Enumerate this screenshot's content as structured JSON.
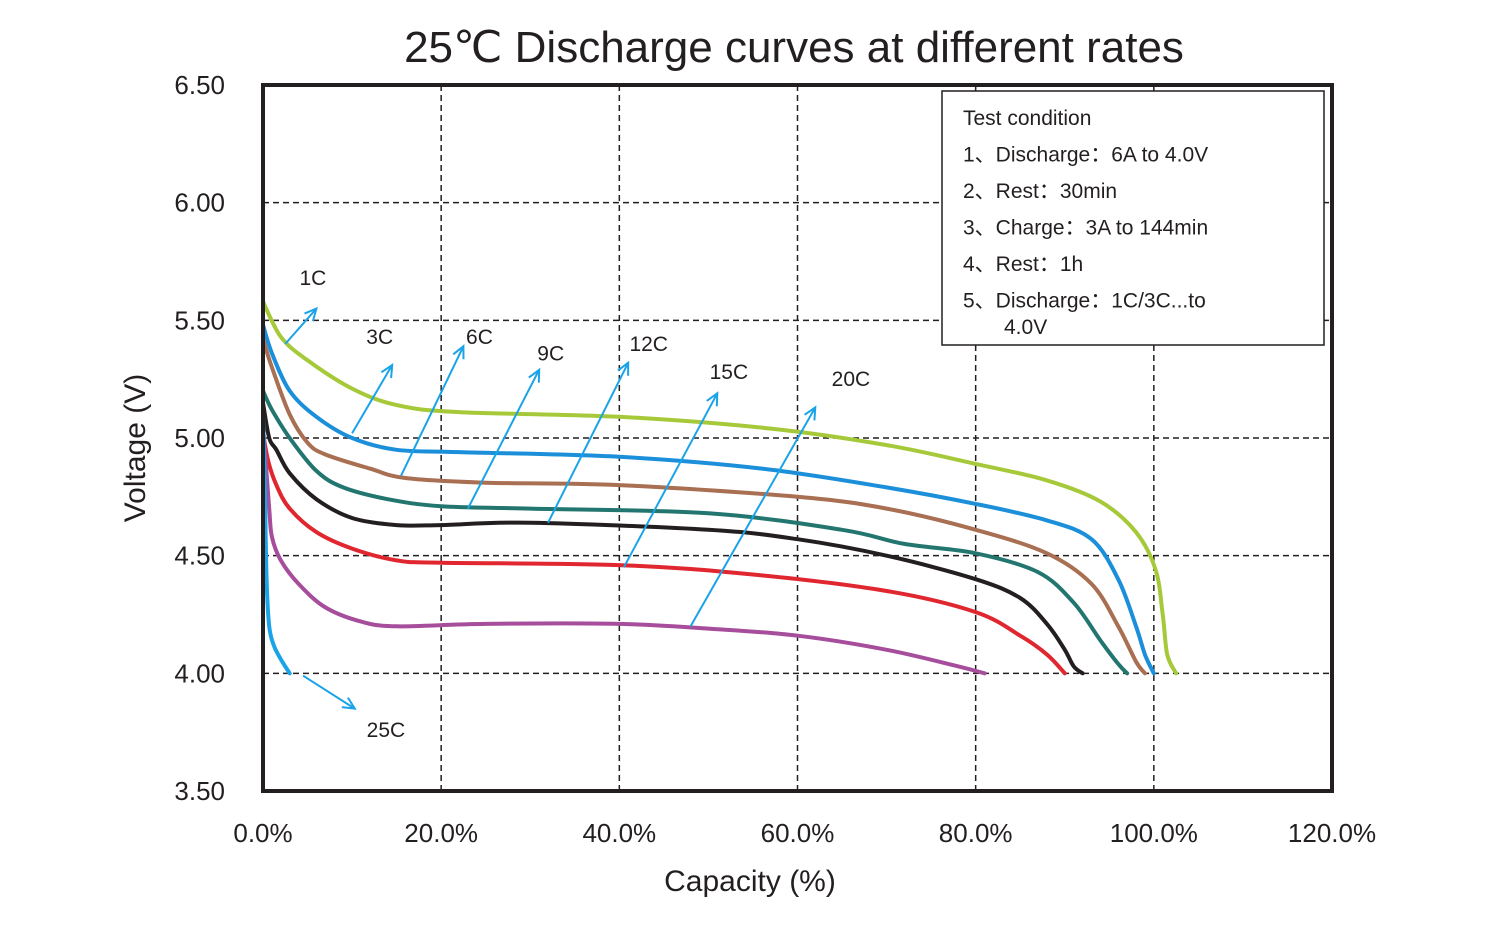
{
  "chart_data": {
    "type": "line",
    "title": "25℃ Discharge curves at different rates",
    "xlabel": "Capacity (%)",
    "ylabel": "Voltage (V)",
    "xlim": [
      0,
      120
    ],
    "ylim": [
      3.5,
      6.5
    ],
    "x_ticks": [
      "0.0%",
      "20.0%",
      "40.0%",
      "60.0%",
      "80.0%",
      "100.0%",
      "120.0%"
    ],
    "y_ticks": [
      "6.50",
      "6.00",
      "5.50",
      "5.00",
      "4.50",
      "4.00",
      "3.50"
    ],
    "grid": true,
    "legend": {
      "placement": "top-right",
      "lines": [
        "Test condition",
        "1、Discharge：6A to 4.0V",
        "2、Rest：30min",
        "3、Charge：3A to 144min",
        "4、Rest：1h",
        "5、Discharge：1C/3C...to",
        "4.0V"
      ]
    },
    "series": [
      {
        "name": "1C",
        "color": "#a6c93a",
        "label_at": [
          5.6,
          5.65
        ],
        "arrow_from": [
          2.5,
          5.4
        ],
        "arrow_to": [
          6.0,
          5.55
        ],
        "points": [
          [
            0,
            5.58
          ],
          [
            2,
            5.43
          ],
          [
            5,
            5.33
          ],
          [
            10,
            5.21
          ],
          [
            15,
            5.14
          ],
          [
            22,
            5.11
          ],
          [
            40,
            5.09
          ],
          [
            57,
            5.04
          ],
          [
            70,
            4.97
          ],
          [
            80,
            4.89
          ],
          [
            88,
            4.82
          ],
          [
            94,
            4.73
          ],
          [
            98,
            4.6
          ],
          [
            100.2,
            4.44
          ],
          [
            101,
            4.25
          ],
          [
            101.5,
            4.08
          ],
          [
            102.5,
            4.0
          ]
        ]
      },
      {
        "name": "3C",
        "color": "#1b8fd9",
        "label_at": [
          13.1,
          5.4
        ],
        "arrow_from": [
          10.0,
          5.02
        ],
        "arrow_to": [
          14.5,
          5.31
        ],
        "points": [
          [
            0,
            5.48
          ],
          [
            1,
            5.36
          ],
          [
            3,
            5.2
          ],
          [
            6,
            5.09
          ],
          [
            10,
            5.0
          ],
          [
            15,
            4.95
          ],
          [
            22,
            4.94
          ],
          [
            40,
            4.92
          ],
          [
            56,
            4.87
          ],
          [
            70,
            4.79
          ],
          [
            80,
            4.72
          ],
          [
            88,
            4.65
          ],
          [
            93,
            4.57
          ],
          [
            96,
            4.4
          ],
          [
            98,
            4.2
          ],
          [
            99,
            4.08
          ],
          [
            100,
            4.0
          ]
        ]
      },
      {
        "name": "6C",
        "color": "#a86f52",
        "label_at": [
          24.3,
          5.4
        ],
        "arrow_from": [
          15.5,
          4.84
        ],
        "arrow_to": [
          22.5,
          5.39
        ],
        "points": [
          [
            0,
            5.42
          ],
          [
            1,
            5.3
          ],
          [
            3,
            5.1
          ],
          [
            5,
            4.98
          ],
          [
            7,
            4.93
          ],
          [
            12,
            4.87
          ],
          [
            16,
            4.83
          ],
          [
            25,
            4.81
          ],
          [
            40,
            4.8
          ],
          [
            60,
            4.75
          ],
          [
            70,
            4.7
          ],
          [
            80,
            4.61
          ],
          [
            88,
            4.51
          ],
          [
            93,
            4.38
          ],
          [
            96,
            4.2
          ],
          [
            98,
            4.05
          ],
          [
            99,
            4.0
          ]
        ]
      },
      {
        "name": "9C",
        "color": "#23766f",
        "label_at": [
          32.3,
          5.33
        ],
        "arrow_from": [
          23.0,
          4.7
        ],
        "arrow_to": [
          31.0,
          5.29
        ],
        "points": [
          [
            0,
            5.2
          ],
          [
            1,
            5.12
          ],
          [
            3,
            5.0
          ],
          [
            6,
            4.86
          ],
          [
            9,
            4.79
          ],
          [
            14,
            4.74
          ],
          [
            20,
            4.71
          ],
          [
            30,
            4.7
          ],
          [
            50,
            4.68
          ],
          [
            65,
            4.61
          ],
          [
            72,
            4.55
          ],
          [
            80,
            4.51
          ],
          [
            87,
            4.43
          ],
          [
            91,
            4.3
          ],
          [
            94,
            4.14
          ],
          [
            96,
            4.04
          ],
          [
            97,
            4.0
          ]
        ]
      },
      {
        "name": "12C",
        "color": "#231f20",
        "label_at": [
          43.3,
          5.37
        ],
        "arrow_from": [
          32.0,
          4.64
        ],
        "arrow_to": [
          41.0,
          5.32
        ],
        "points": [
          [
            0,
            5.15
          ],
          [
            0.7,
            5.0
          ],
          [
            1.5,
            4.95
          ],
          [
            3,
            4.85
          ],
          [
            6,
            4.74
          ],
          [
            10,
            4.66
          ],
          [
            15,
            4.63
          ],
          [
            20,
            4.63
          ],
          [
            30,
            4.64
          ],
          [
            50,
            4.61
          ],
          [
            60,
            4.57
          ],
          [
            70,
            4.5
          ],
          [
            80,
            4.4
          ],
          [
            85,
            4.32
          ],
          [
            88,
            4.21
          ],
          [
            90,
            4.1
          ],
          [
            91,
            4.03
          ],
          [
            92,
            4.0
          ]
        ]
      },
      {
        "name": "15C",
        "color": "#e0262f",
        "label_at": [
          52.3,
          5.25
        ],
        "arrow_from": [
          40.5,
          4.45
        ],
        "arrow_to": [
          51.0,
          5.19
        ],
        "points": [
          [
            0,
            5.02
          ],
          [
            0.6,
            4.9
          ],
          [
            1.5,
            4.8
          ],
          [
            3,
            4.7
          ],
          [
            6,
            4.6
          ],
          [
            10,
            4.53
          ],
          [
            15,
            4.48
          ],
          [
            20,
            4.47
          ],
          [
            40,
            4.46
          ],
          [
            55,
            4.42
          ],
          [
            70,
            4.35
          ],
          [
            80,
            4.26
          ],
          [
            85,
            4.16
          ],
          [
            88,
            4.08
          ],
          [
            90,
            4.0
          ]
        ]
      },
      {
        "name": "20C",
        "color": "#a64d9b",
        "label_at": [
          66.0,
          5.22
        ],
        "arrow_from": [
          48.0,
          4.2
        ],
        "arrow_to": [
          62.0,
          5.13
        ],
        "points": [
          [
            0,
            5.05
          ],
          [
            0.3,
            4.9
          ],
          [
            0.7,
            4.7
          ],
          [
            1,
            4.58
          ],
          [
            2,
            4.48
          ],
          [
            4,
            4.38
          ],
          [
            7,
            4.28
          ],
          [
            11,
            4.22
          ],
          [
            15,
            4.2
          ],
          [
            25,
            4.21
          ],
          [
            40,
            4.21
          ],
          [
            50,
            4.19
          ],
          [
            60,
            4.16
          ],
          [
            70,
            4.1
          ],
          [
            78,
            4.03
          ],
          [
            81,
            4.0
          ]
        ]
      },
      {
        "name": "25C",
        "color": "#1aa3e8",
        "label_at": [
          13.8,
          3.73
        ],
        "arrow_from": [
          4.5,
          3.99
        ],
        "arrow_to": [
          10.3,
          3.85
        ],
        "points": [
          [
            0,
            5.1
          ],
          [
            0.2,
            4.8
          ],
          [
            0.4,
            4.4
          ],
          [
            0.7,
            4.2
          ],
          [
            1.2,
            4.12
          ],
          [
            2,
            4.06
          ],
          [
            3,
            4.0
          ]
        ]
      }
    ]
  }
}
